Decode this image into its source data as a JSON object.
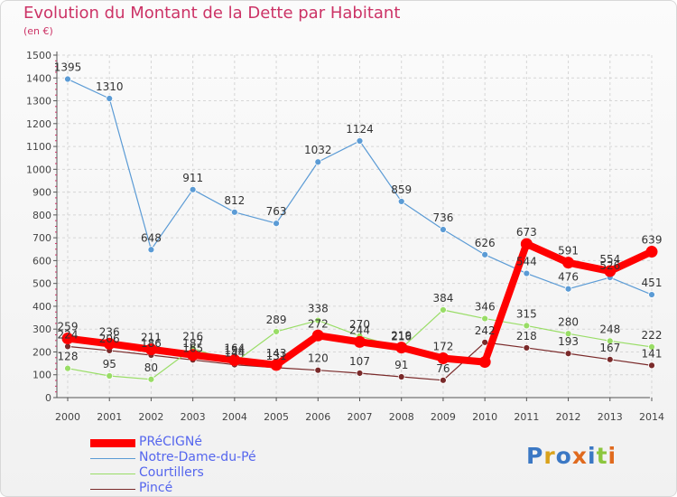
{
  "header": {
    "title": "Evolution du Montant de la Dette par Habitant",
    "subtitle": "(en €)"
  },
  "logo": {
    "text": "Proxiti"
  },
  "colors": {
    "title": "#cc3366",
    "axis_text": "#444444",
    "legend_text": "#5566ee"
  },
  "chart_data": {
    "type": "line",
    "title": "Evolution du Montant de la Dette par Habitant",
    "subtitle": "(en €)",
    "xlabel": "",
    "ylabel": "",
    "ylim": [
      0,
      1500
    ],
    "yticks": [
      0,
      100,
      200,
      300,
      400,
      500,
      600,
      700,
      800,
      900,
      1000,
      1100,
      1200,
      1300,
      1400,
      1500
    ],
    "x": [
      "2000",
      "2001",
      "2002",
      "2003",
      "2004",
      "2005",
      "2006",
      "2007",
      "2008",
      "2009",
      "2010",
      "2011",
      "2012",
      "2013",
      "2014"
    ],
    "grid": true,
    "legend_position": "bottom-left",
    "series": [
      {
        "name": "PRéCIGNé",
        "color": "#ff0000",
        "values": [
          259,
          236,
          211,
          187,
          164,
          143,
          272,
          244,
          219,
          172,
          156,
          673,
          591,
          554,
          639
        ]
      },
      {
        "name": "Notre-Dame-du-Pé",
        "color": "#5b9bd5",
        "values": [
          1395,
          1310,
          648,
          911,
          812,
          763,
          1032,
          1124,
          859,
          736,
          626,
          544,
          476,
          526,
          451
        ]
      },
      {
        "name": "Courtillers",
        "color": "#99dd66",
        "values": [
          128,
          95,
          80,
          216,
          154,
          289,
          338,
          270,
          216,
          384,
          346,
          315,
          280,
          248,
          222
        ]
      },
      {
        "name": "Pincé",
        "color": "#7a2a2a",
        "values": [
          224,
          206,
          186,
          165,
          144,
          131,
          120,
          107,
          91,
          76,
          242,
          218,
          193,
          167,
          141
        ]
      }
    ],
    "data_labels": [
      [
        "259",
        "236",
        "211",
        "187",
        "164",
        "143",
        "272",
        "244",
        "219",
        "172",
        "",
        "673",
        "591",
        "554",
        "639"
      ],
      [
        "1395",
        "1310",
        "648",
        "911",
        "812",
        "763",
        "1032",
        "1124",
        "859",
        "736",
        "626",
        "544",
        "476",
        "526",
        "451"
      ],
      [
        "128",
        "95",
        "80",
        "216",
        "154",
        "289",
        "338",
        "270",
        "216",
        "384",
        "346",
        "315",
        "280",
        "248",
        "222"
      ],
      [
        "224",
        "206",
        "186",
        "165",
        "144",
        "131",
        "120",
        "107",
        "91",
        "76",
        "242",
        "218",
        "193",
        "167",
        "141"
      ]
    ]
  }
}
